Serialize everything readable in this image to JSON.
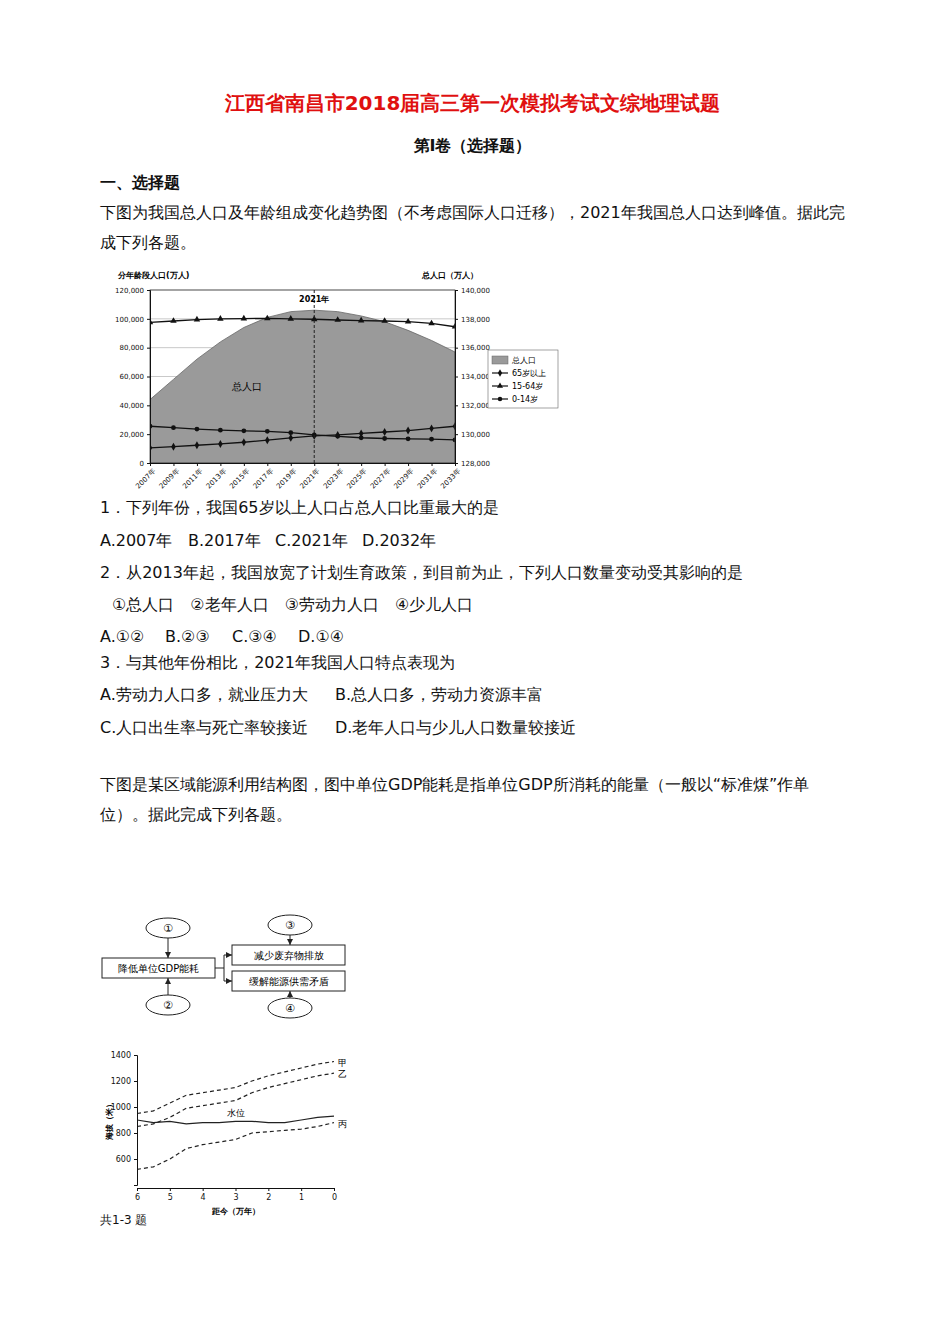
{
  "header": {
    "title": "江西省南昌市2018届高三第一次模拟考试文综地理试题",
    "part": "第Ⅰ卷（选择题）",
    "section": "一、选择题"
  },
  "passages": [
    "下图为我国总人口及年龄组成变化趋势图（不考虑国际人口迁移），2021年我国总人口达到峰值。据此完成下列各题。",
    "下图是某区域能源利用结构图，图中单位GDP能耗是指单位GDP所消耗的能量（一般以“标准煤”作单位）。据此完成下列各题。"
  ],
  "questions": [
    {
      "stem": "1．下列年份，我国65岁以上人口占总人口比重最大的是",
      "options": [
        "A.2007年",
        "B.2017年",
        "C.2021年",
        "D.2032年"
      ]
    },
    {
      "stem": "2．从2013年起，我国放宽了计划生育政策，到目前为止，下列人口数量变动受其影响的是",
      "items": "①总人口　②老年人口　③劳动力人口　④少儿人口",
      "options": [
        "A.①②",
        "B.②③",
        "C.③④",
        "D.①④"
      ]
    },
    {
      "stem": "3．与其他年份相比，2021年我国人口特点表现为",
      "options": [
        "A.劳动力人口多，就业压力大",
        "B.总人口多，劳动力资源丰富",
        "C.人口出生率与死亡率较接近",
        "D.老年人口与少儿人口数量较接近"
      ]
    }
  ],
  "diagram": {
    "inputs": [
      "①",
      "②"
    ],
    "center": "降低单位GDP能耗",
    "outcomes": [
      "减少废弃物排放",
      "缓解能源供需矛盾"
    ],
    "outcome_inputs": [
      "③",
      "④"
    ]
  },
  "caption": "共1-3 题",
  "chart_data": [
    {
      "type": "line",
      "y_label": "分年龄段人口(万人)",
      "y2_label": "总人口（万人）",
      "x": [
        2007,
        2009,
        2011,
        2013,
        2015,
        2017,
        2019,
        2021,
        2023,
        2025,
        2027,
        2029,
        2031,
        2033
      ],
      "xlim": [
        2007,
        2033
      ],
      "xticks": [
        {
          "value": 2007,
          "label": "2007年"
        },
        {
          "value": 2009,
          "label": "2009年"
        },
        {
          "value": 2011,
          "label": "2011年"
        },
        {
          "value": 2013,
          "label": "2013年"
        },
        {
          "value": 2015,
          "label": "2015年"
        },
        {
          "value": 2017,
          "label": "2017年"
        },
        {
          "value": 2019,
          "label": "2019年"
        },
        {
          "value": 2021,
          "label": "2021年"
        },
        {
          "value": 2023,
          "label": "2023年"
        },
        {
          "value": 2025,
          "label": "2025年"
        },
        {
          "value": 2027,
          "label": "2027年"
        },
        {
          "value": 2029,
          "label": "2029年"
        },
        {
          "value": 2031,
          "label": "2031年"
        },
        {
          "value": 2033,
          "label": "2033年"
        }
      ],
      "ylim": [
        0,
        120000
      ],
      "yticks": [
        0,
        {
          "value": 20000,
          "label": "20,000"
        },
        {
          "value": 40000,
          "label": "40,000"
        },
        {
          "value": 60000,
          "label": "60,000"
        },
        {
          "value": 80000,
          "label": "80,000"
        },
        {
          "value": 100000,
          "label": "100,000"
        },
        {
          "value": 120000,
          "label": "120,000"
        }
      ],
      "y2lim": [
        128000,
        140000
      ],
      "y2ticks": [
        {
          "value": 128000,
          "label": "128,000"
        },
        {
          "value": 130000,
          "label": "130,000"
        },
        {
          "value": 132000,
          "label": "132,000"
        },
        {
          "value": 134000,
          "label": "134,000"
        },
        {
          "value": 136000,
          "label": "136,000"
        },
        {
          "value": 138000,
          "label": "138,000"
        },
        {
          "value": 140000,
          "label": "140,000"
        }
      ],
      "grid": true,
      "legend": "right",
      "annotations": [
        {
          "text": "2021年",
          "x": 2021
        },
        {
          "text": "总人口"
        }
      ],
      "series": [
        {
          "name": "总人口",
          "type": "area",
          "axis": "y2",
          "color": "#9a9a9a",
          "values": [
            132400,
            133800,
            135200,
            136400,
            137400,
            138100,
            138500,
            138600,
            138500,
            138200,
            137800,
            137200,
            136500,
            135700
          ]
        },
        {
          "name": "65岁以上",
          "type": "line",
          "marker": "diamond",
          "color": "#111111",
          "values": [
            10500,
            11300,
            12300,
            13200,
            14400,
            15800,
            17400,
            18800,
            19500,
            20500,
            21500,
            22500,
            24000,
            25500
          ]
        },
        {
          "name": "15-64岁",
          "type": "line",
          "marker": "triangle",
          "color": "#111111",
          "values": [
            97500,
            98500,
            99500,
            100000,
            100200,
            100300,
            100000,
            99700,
            99200,
            98800,
            98500,
            98000,
            96800,
            94500
          ]
        },
        {
          "name": "0-14岁",
          "type": "line",
          "marker": "circle",
          "color": "#111111",
          "values": [
            25500,
            24500,
            23500,
            22800,
            22300,
            22000,
            21000,
            19500,
            18500,
            17500,
            17000,
            16800,
            16500,
            16000
          ]
        }
      ]
    },
    {
      "type": "line",
      "y_label": "海拔（米）",
      "x_label": "距今（万年）",
      "x": [
        6,
        5.5,
        5,
        4.5,
        4,
        3.5,
        3,
        2.5,
        2,
        1.5,
        1,
        0.5,
        0
      ],
      "xlim": [
        6,
        0
      ],
      "xticks": [
        6,
        5,
        4,
        3,
        2,
        1,
        0
      ],
      "ylim": [
        400,
        1400
      ],
      "yticks": [
        600,
        800,
        1000,
        1200,
        1400
      ],
      "series": [
        {
          "name": "甲",
          "line_style": "dashed",
          "color": "#222222",
          "values": [
            950,
            970,
            1030,
            1090,
            1110,
            1130,
            1150,
            1200,
            1240,
            1270,
            1300,
            1330,
            1350
          ]
        },
        {
          "name": "乙",
          "line_style": "dashed",
          "color": "#222222",
          "values": [
            850,
            870,
            920,
            990,
            1010,
            1030,
            1050,
            1110,
            1150,
            1180,
            1210,
            1240,
            1260
          ]
        },
        {
          "name": "水位",
          "line_style": "solid",
          "color": "#222222",
          "values": [
            900,
            880,
            890,
            870,
            880,
            880,
            890,
            890,
            880,
            880,
            900,
            920,
            930
          ]
        },
        {
          "name": "丙",
          "line_style": "dashed",
          "color": "#222222",
          "values": [
            520,
            540,
            600,
            680,
            710,
            730,
            750,
            800,
            810,
            820,
            830,
            850,
            880
          ]
        }
      ]
    }
  ]
}
